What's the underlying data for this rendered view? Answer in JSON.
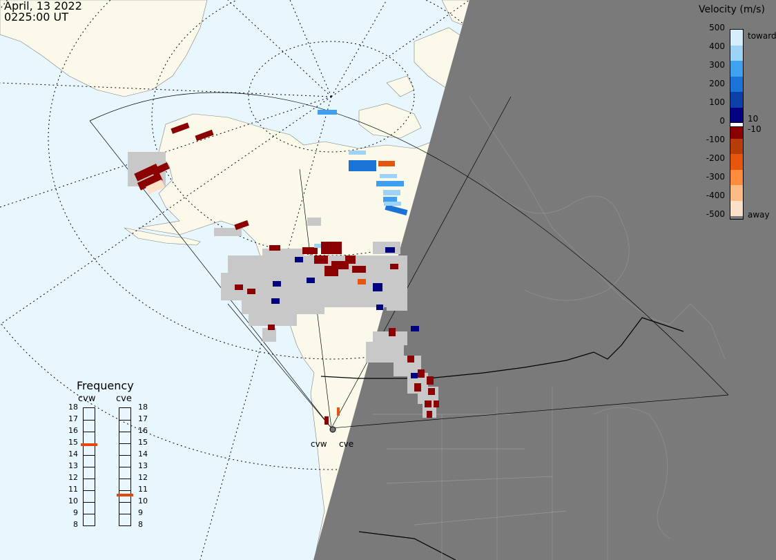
{
  "header": {
    "date": "April, 13 2022",
    "time": "0225:00 UT"
  },
  "legend": {
    "title": "Velocity (m/s)",
    "ticks": [
      "500",
      "400",
      "300",
      "200",
      "100",
      "0",
      "-100",
      "-200",
      "-300",
      "-400",
      "-500"
    ],
    "toward_label": "toward",
    "away_label": "away",
    "pos_threshold": "10",
    "neg_threshold": "-10",
    "colors": [
      "#fde0c8",
      "#fdbb84",
      "#fd8d3c",
      "#e6550d",
      "#b83c08",
      "#8b0000",
      "#000080",
      "#0d3fa8",
      "#1a73d6",
      "#3fa0f0",
      "#9dd3f7",
      "#d6eefc"
    ]
  },
  "frequency": {
    "title": "Frequency",
    "stations": [
      "cvw",
      "cve"
    ],
    "scale": [
      "18",
      "17",
      "16",
      "15",
      "14",
      "13",
      "12",
      "11",
      "10",
      "9",
      "8"
    ],
    "cvw_mhz": 14.9,
    "cve_mhz": 10.6
  },
  "map": {
    "radar_labels": [
      "cvw",
      "cve"
    ],
    "colors": {
      "ocean": "#e8f6fe",
      "land": "#fbfaea",
      "night": "#7a7a7a",
      "ground_scatter": "#c8c8c8",
      "grid_line": "#000000"
    }
  }
}
